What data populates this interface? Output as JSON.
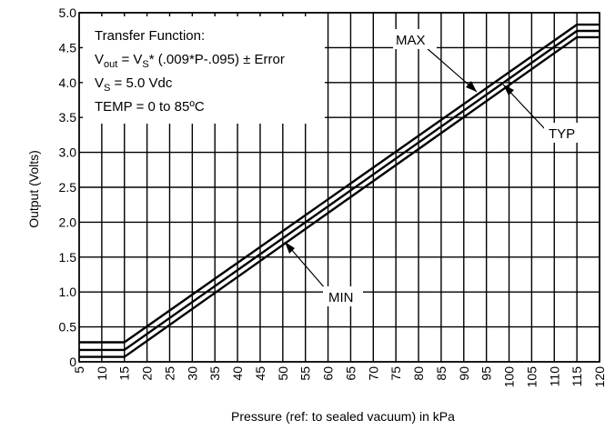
{
  "chart_data": {
    "type": "line",
    "xlabel": "Pressure (ref: to sealed vacuum) in kPa",
    "ylabel": "Output (Volts)",
    "xlim": [
      5,
      120
    ],
    "ylim": [
      0,
      5.0
    ],
    "xticks": [
      5,
      10,
      15,
      20,
      25,
      30,
      35,
      40,
      45,
      50,
      55,
      60,
      65,
      70,
      75,
      80,
      85,
      90,
      95,
      100,
      105,
      110,
      115,
      120
    ],
    "yticks": [
      0,
      0.5,
      1.0,
      1.5,
      2.0,
      2.5,
      3.0,
      3.5,
      4.0,
      4.5,
      5.0
    ],
    "ytick_labels": [
      "0",
      "0.5",
      "1.0",
      "1.5",
      "2.0",
      "2.5",
      "3.0",
      "3.5",
      "4.0",
      "4.5",
      "5.0"
    ],
    "grid": true,
    "series": [
      {
        "name": "MAX",
        "x": [
          5,
          15,
          115,
          120
        ],
        "y": [
          0.28,
          0.28,
          4.83,
          4.83
        ]
      },
      {
        "name": "TYP",
        "x": [
          5,
          15,
          115,
          120
        ],
        "y": [
          0.17,
          0.17,
          4.74,
          4.74
        ]
      },
      {
        "name": "MIN",
        "x": [
          5,
          15,
          115,
          120
        ],
        "y": [
          0.07,
          0.07,
          4.65,
          4.65
        ]
      }
    ],
    "annotation": {
      "line1": "Transfer Function:",
      "line2_main": "V",
      "line2_sub": "out",
      "line2_mid": " = V",
      "line2_sub2": "S",
      "line2_rest": "* (.009*P-.095) ± Error",
      "line3_main": "V",
      "line3_sub": "S",
      "line3_rest": " = 5.0 Vdc",
      "line4": "TEMP = 0 to 85ºC"
    },
    "labels": {
      "max": "MAX",
      "typ": "TYP",
      "min": "MIN"
    }
  }
}
